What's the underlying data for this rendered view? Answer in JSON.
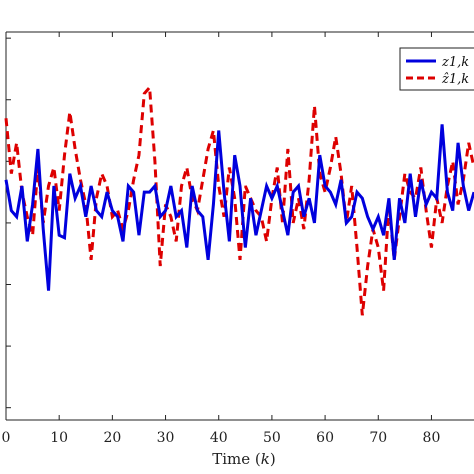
{
  "chart_data": {
    "type": "line",
    "xlabel_main": "Time (",
    "xlabel_var": "k",
    "xlabel_close": ")",
    "x_ticks": [
      0,
      10,
      20,
      30,
      40,
      50,
      60,
      70,
      80
    ],
    "xlim": [
      0,
      88
    ],
    "ylim": [
      -1.6,
      1.55
    ],
    "grid": false,
    "legend_position": "top-right",
    "series": [
      {
        "name": "z_{1,k}",
        "legend_display": "z1,k",
        "color": "#0000dd",
        "style": "solid",
        "values": [
          0.35,
          0.1,
          0.05,
          0.3,
          -0.15,
          0.15,
          0.6,
          -0.05,
          -0.55,
          0.3,
          -0.1,
          -0.12,
          0.4,
          0.2,
          0.3,
          0.05,
          0.3,
          0.1,
          0.05,
          0.25,
          0.1,
          0.05,
          -0.15,
          0.3,
          0.25,
          -0.1,
          0.25,
          0.25,
          0.3,
          0.05,
          0.1,
          0.3,
          0.05,
          0.1,
          -0.2,
          0.3,
          0.1,
          0.05,
          -0.3,
          0.15,
          0.75,
          0.25,
          -0.15,
          0.55,
          0.3,
          -0.2,
          0.2,
          -0.1,
          0.1,
          0.3,
          0.2,
          0.3,
          0.1,
          -0.1,
          0.25,
          0.3,
          0.05,
          0.2,
          0.0,
          0.55,
          0.3,
          0.25,
          0.15,
          0.35,
          0.0,
          0.05,
          0.25,
          0.2,
          0.05,
          -0.05,
          0.05,
          -0.1,
          0.2,
          -0.3,
          0.2,
          0.0,
          0.4,
          0.05,
          0.35,
          0.15,
          0.25,
          0.2,
          0.8,
          0.25,
          0.1,
          0.65,
          0.3,
          0.1,
          0.25
        ]
      },
      {
        "name": "ẑ_{1,k}",
        "legend_display": "ẑ1,k",
        "color": "#dd0000",
        "style": "dashed",
        "values": [
          0.85,
          0.4,
          0.65,
          0.25,
          0.05,
          -0.1,
          0.45,
          0.0,
          0.3,
          0.45,
          0.1,
          0.55,
          0.9,
          0.6,
          0.35,
          0.15,
          -0.3,
          0.2,
          0.4,
          0.3,
          0.05,
          0.1,
          -0.05,
          0.1,
          0.35,
          0.55,
          1.05,
          1.1,
          0.5,
          -0.35,
          0.15,
          0.05,
          -0.15,
          0.3,
          0.45,
          0.2,
          0.1,
          0.35,
          0.6,
          0.75,
          0.3,
          0.05,
          0.45,
          0.2,
          -0.3,
          0.3,
          0.2,
          0.1,
          0.05,
          -0.15,
          0.2,
          0.45,
          0.0,
          0.6,
          0.0,
          0.2,
          -0.05,
          0.35,
          0.95,
          0.4,
          0.25,
          0.45,
          0.7,
          0.4,
          0.0,
          0.3,
          -0.2,
          -0.75,
          -0.35,
          -0.05,
          -0.2,
          -0.55,
          0.15,
          -0.3,
          0.05,
          0.4,
          0.25,
          0.2,
          0.45,
          0.1,
          -0.2,
          0.2,
          0.0,
          0.3,
          0.5,
          0.15,
          0.35,
          0.65,
          0.45
        ]
      }
    ]
  }
}
